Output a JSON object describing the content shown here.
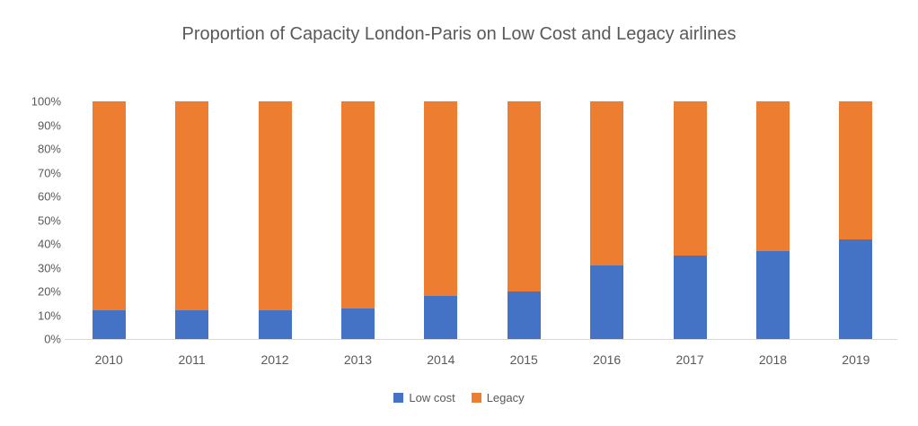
{
  "title": "Proportion of Capacity London-Paris on Low Cost and Legacy airlines",
  "colors": {
    "low_cost": "#4472C4",
    "legacy": "#ED7D31",
    "text": "#595959",
    "axis_line": "#D9D9D9",
    "background": "#FFFFFF"
  },
  "legend": {
    "position": "bottom-center",
    "items": [
      {
        "label": "Low cost",
        "color": "#4472C4",
        "swatch": "square-icon"
      },
      {
        "label": "Legacy",
        "color": "#ED7D31",
        "swatch": "square-icon"
      }
    ]
  },
  "chart_data": {
    "type": "bar",
    "stacked": true,
    "title": "Proportion of Capacity London-Paris on Low Cost and Legacy airlines",
    "categories": [
      "2010",
      "2011",
      "2012",
      "2013",
      "2014",
      "2015",
      "2016",
      "2017",
      "2018",
      "2019"
    ],
    "series": [
      {
        "name": "Low cost",
        "color": "#4472C4",
        "values": [
          12,
          12,
          12,
          13,
          18,
          20,
          31,
          35,
          37,
          42
        ]
      },
      {
        "name": "Legacy",
        "color": "#ED7D31",
        "values": [
          88,
          88,
          88,
          87,
          82,
          80,
          69,
          65,
          63,
          58
        ]
      }
    ],
    "xlabel": "",
    "ylabel": "",
    "ylim": [
      0,
      100
    ],
    "y_tick_labels": [
      "0%",
      "10%",
      "20%",
      "30%",
      "40%",
      "50%",
      "60%",
      "70%",
      "80%",
      "90%",
      "100%"
    ],
    "y_tick_values": [
      0,
      10,
      20,
      30,
      40,
      50,
      60,
      70,
      80,
      90,
      100
    ],
    "grid": false,
    "legend_position": "bottom"
  }
}
